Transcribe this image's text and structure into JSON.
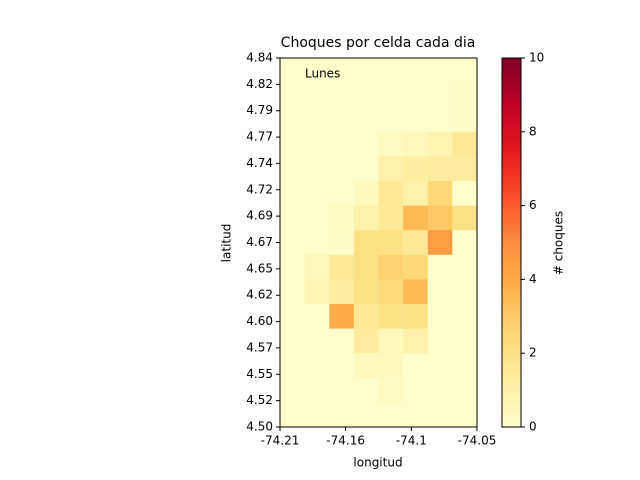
{
  "chart_data": {
    "type": "heatmap",
    "title": "Choques por celda cada dia",
    "x_label": "longitud",
    "y_label": "latitud",
    "annotation": "Lunes",
    "xlim": [
      -74.21,
      -74.05
    ],
    "xticks": [
      {
        "value": -74.21,
        "label": "-74.21"
      },
      {
        "value": -74.1567,
        "label": "-74.16"
      },
      {
        "value": -74.1033,
        "label": "-74.1"
      },
      {
        "value": -74.05,
        "label": "-74.05"
      }
    ],
    "ylim": [
      4.5,
      4.84
    ],
    "yticks": [
      {
        "value": 4.5,
        "label": "4.50"
      },
      {
        "value": 4.5243,
        "label": "4.52"
      },
      {
        "value": 4.5486,
        "label": "4.55"
      },
      {
        "value": 4.5729,
        "label": "4.57"
      },
      {
        "value": 4.5971,
        "label": "4.60"
      },
      {
        "value": 4.6214,
        "label": "4.62"
      },
      {
        "value": 4.6457,
        "label": "4.65"
      },
      {
        "value": 4.67,
        "label": "4.67"
      },
      {
        "value": 4.6943,
        "label": "4.69"
      },
      {
        "value": 4.7186,
        "label": "4.72"
      },
      {
        "value": 4.7429,
        "label": "4.74"
      },
      {
        "value": 4.7671,
        "label": "4.77"
      },
      {
        "value": 4.7914,
        "label": "4.79"
      },
      {
        "value": 4.8157,
        "label": "4.82"
      },
      {
        "value": 4.84,
        "label": "4.84"
      }
    ],
    "z": [
      [
        0,
        0,
        0,
        0,
        0,
        0,
        0,
        0
      ],
      [
        0,
        0,
        0,
        0,
        0,
        0,
        0,
        0.1
      ],
      [
        0,
        0,
        0,
        0,
        0,
        0,
        0,
        0.1
      ],
      [
        0,
        0,
        0,
        0,
        0.3,
        0.5,
        0.8,
        1.5
      ],
      [
        0,
        0,
        0,
        0,
        1,
        1.2,
        1.3,
        1.3
      ],
      [
        0,
        0,
        0,
        0.4,
        1.5,
        1,
        2.5,
        0
      ],
      [
        0,
        0,
        0.3,
        1,
        1.5,
        3.5,
        3,
        2
      ],
      [
        0,
        0,
        0.1,
        2,
        2,
        1.5,
        4.5,
        0
      ],
      [
        0,
        0.5,
        1.5,
        2,
        2.7,
        2.5,
        0,
        0
      ],
      [
        0,
        0.7,
        1.2,
        2,
        2.3,
        3.5,
        0,
        0
      ],
      [
        0,
        0,
        4,
        1.5,
        2,
        2,
        0,
        0
      ],
      [
        0,
        0,
        0,
        1.3,
        0.5,
        1,
        0,
        0
      ],
      [
        0,
        0,
        0,
        0.4,
        0.4,
        0,
        0,
        0
      ],
      [
        0,
        0,
        0,
        0,
        0.3,
        0,
        0,
        0
      ],
      [
        0,
        0,
        0,
        0,
        0,
        0,
        0,
        0
      ]
    ],
    "colormap": [
      "#ffffcc",
      "#ffeda0",
      "#fed976",
      "#feb24c",
      "#fd8d3c",
      "#fc4e2a",
      "#e31a1c",
      "#bd0026",
      "#800026"
    ],
    "colorbar": {
      "label": "# choques",
      "lim": [
        0,
        10
      ],
      "ticks": [
        0,
        2,
        4,
        6,
        8,
        10
      ]
    }
  }
}
